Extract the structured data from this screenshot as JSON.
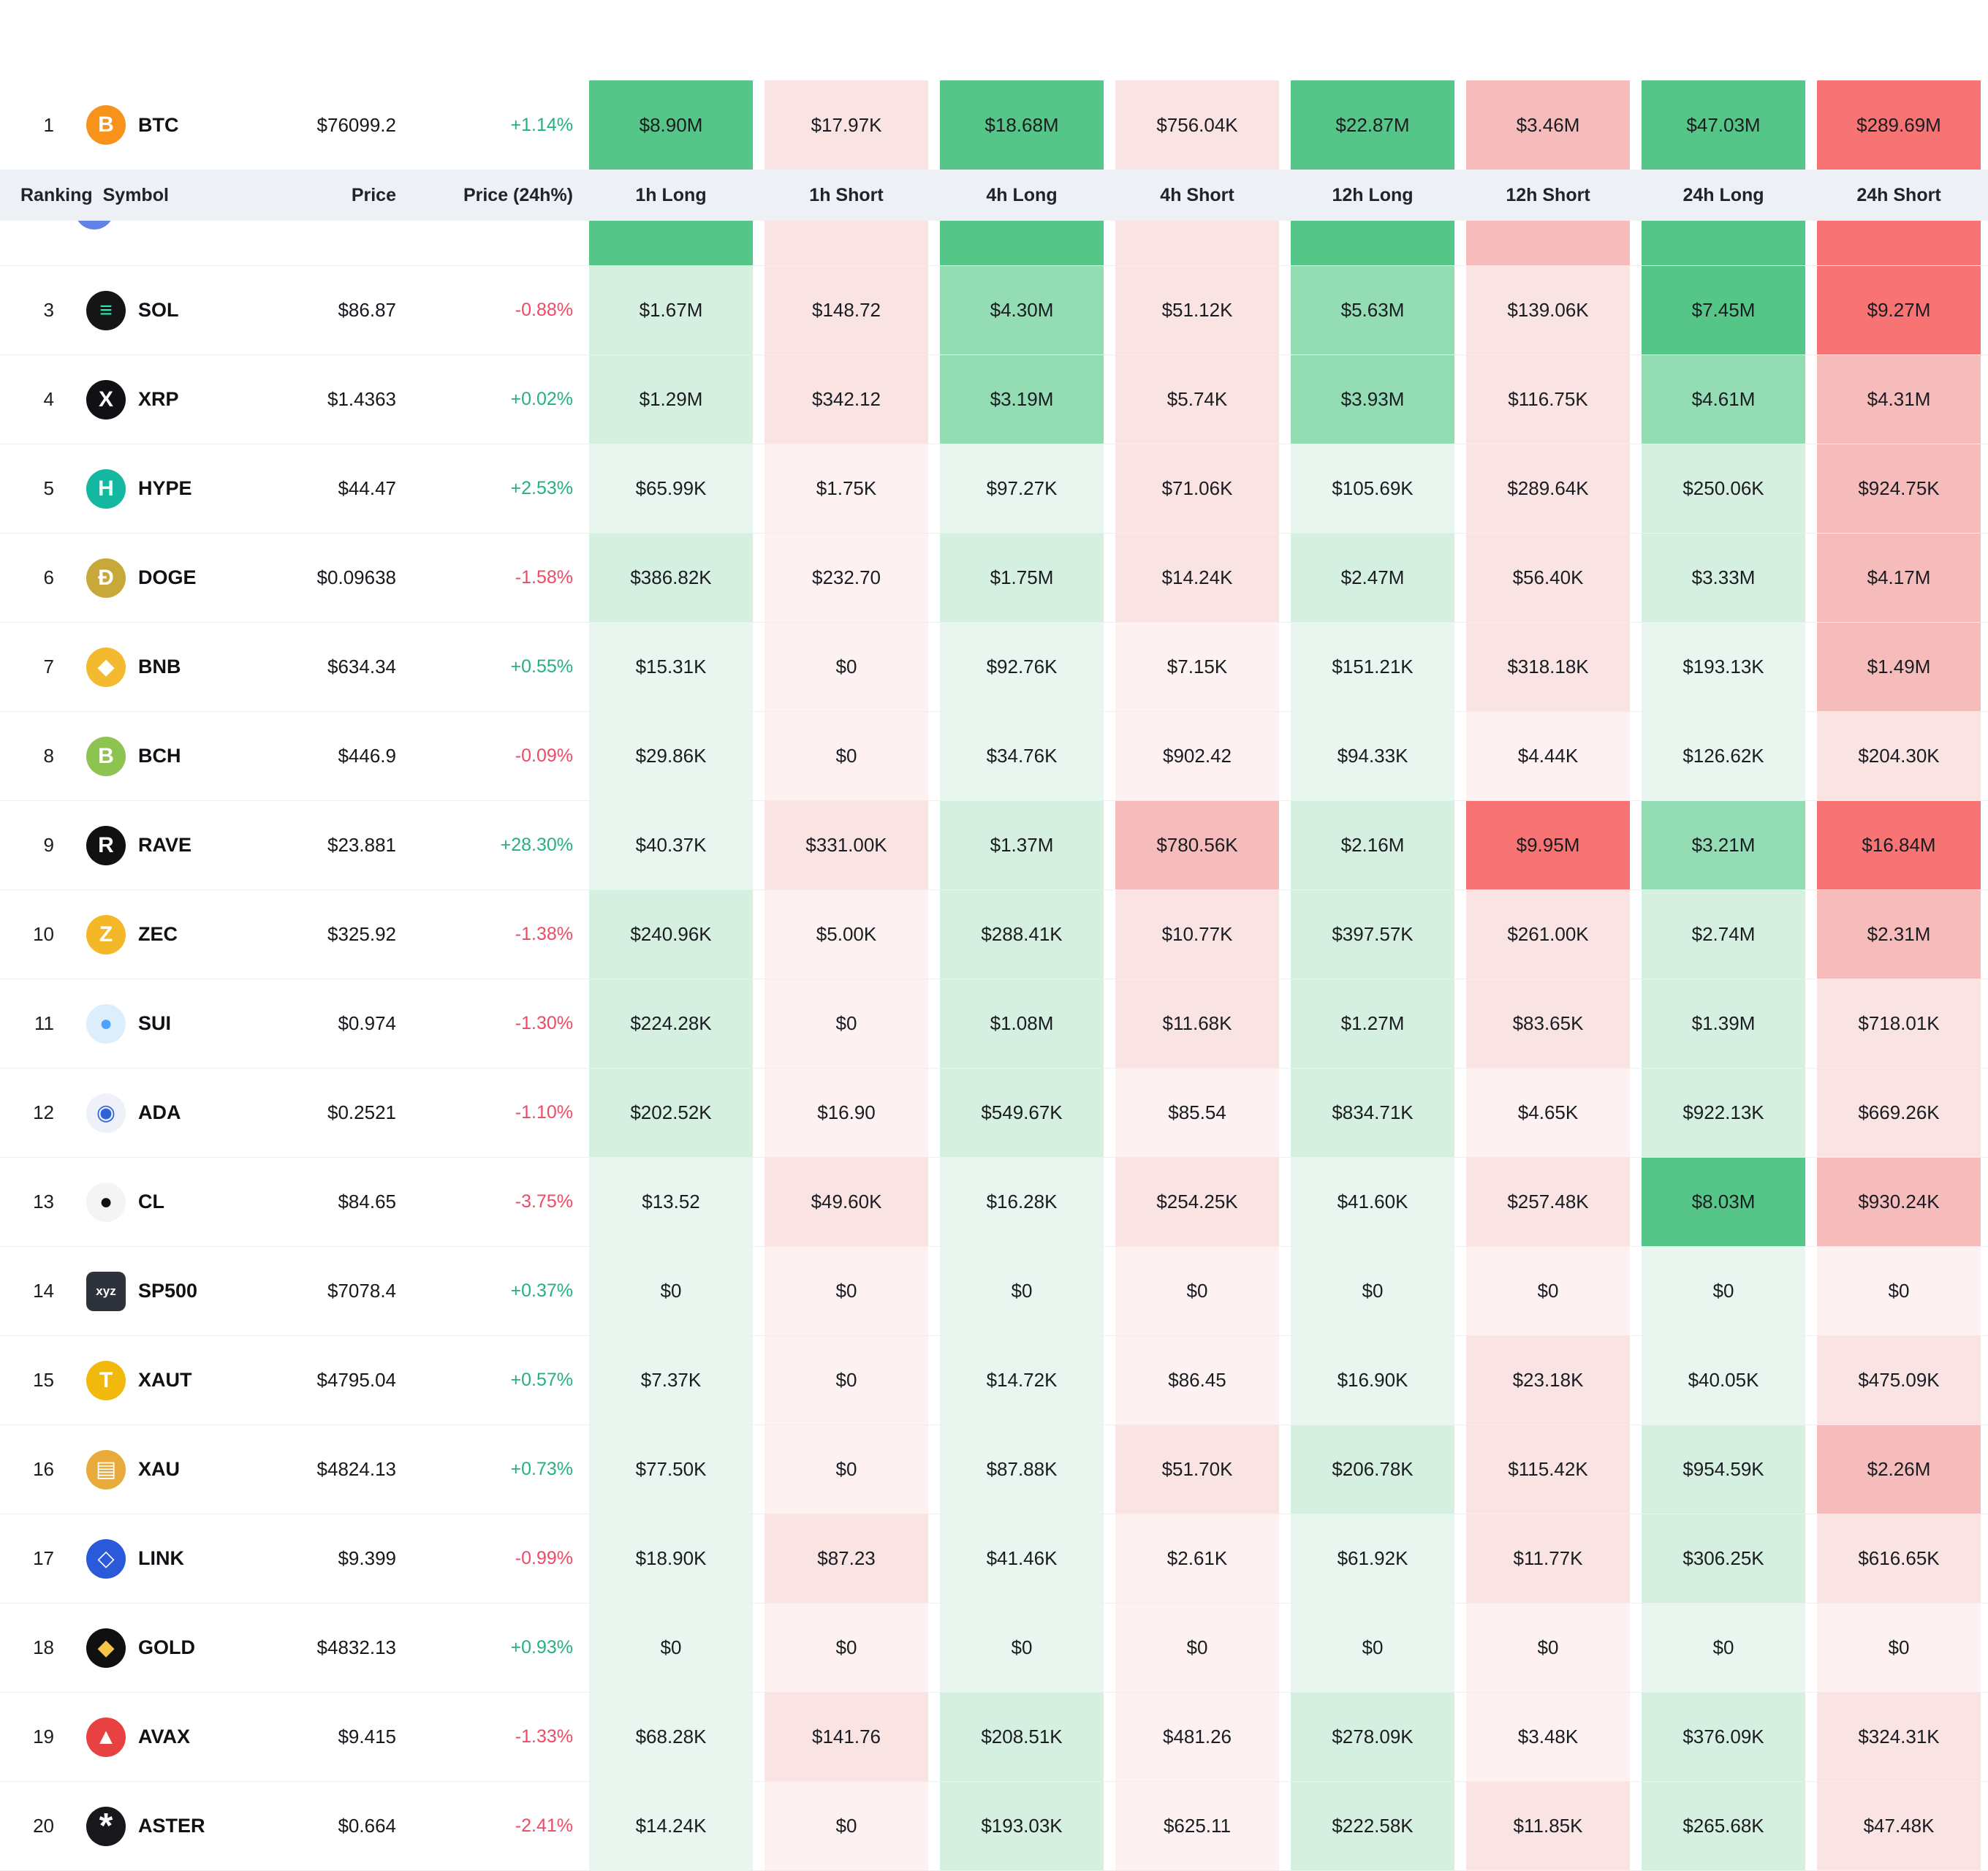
{
  "table": {
    "columns": [
      "Ranking",
      "Symbol",
      "Price",
      "Price (24h%)",
      "1h Long",
      "1h Short",
      "4h Long",
      "4h Short",
      "12h Long",
      "12h Short",
      "24h Long",
      "24h Short"
    ],
    "rows": [
      {
        "rank": "1",
        "symbol": "BTC",
        "icon": {
          "glyph": "B",
          "bg": "#f7931a",
          "fg": "#ffffff"
        },
        "price": "$76099.2",
        "change": "+1.14%",
        "dir": "up",
        "cells": [
          {
            "v": "$8.90M",
            "c": "g3"
          },
          {
            "v": "$17.97K",
            "c": "r1"
          },
          {
            "v": "$18.68M",
            "c": "g3"
          },
          {
            "v": "$756.04K",
            "c": "r1"
          },
          {
            "v": "$22.87M",
            "c": "g3"
          },
          {
            "v": "$3.46M",
            "c": "r2"
          },
          {
            "v": "$47.03M",
            "c": "g3"
          },
          {
            "v": "$289.69M",
            "c": "r3"
          }
        ]
      },
      {
        "rank": "3",
        "symbol": "SOL",
        "icon": {
          "glyph": "≡",
          "bg": "#151515",
          "fg": "#23edb2"
        },
        "price": "$86.87",
        "change": "-0.88%",
        "dir": "down",
        "cells": [
          {
            "v": "$1.67M",
            "c": "g1"
          },
          {
            "v": "$148.72",
            "c": "r1"
          },
          {
            "v": "$4.30M",
            "c": "g2"
          },
          {
            "v": "$51.12K",
            "c": "r1"
          },
          {
            "v": "$5.63M",
            "c": "g2"
          },
          {
            "v": "$139.06K",
            "c": "r1"
          },
          {
            "v": "$7.45M",
            "c": "g3"
          },
          {
            "v": "$9.27M",
            "c": "r3"
          }
        ]
      },
      {
        "rank": "4",
        "symbol": "XRP",
        "icon": {
          "glyph": "X",
          "bg": "#101114",
          "fg": "#ffffff"
        },
        "price": "$1.4363",
        "change": "+0.02%",
        "dir": "up",
        "cells": [
          {
            "v": "$1.29M",
            "c": "g1"
          },
          {
            "v": "$342.12",
            "c": "r1"
          },
          {
            "v": "$3.19M",
            "c": "g2"
          },
          {
            "v": "$5.74K",
            "c": "r1"
          },
          {
            "v": "$3.93M",
            "c": "g2"
          },
          {
            "v": "$116.75K",
            "c": "r1"
          },
          {
            "v": "$4.61M",
            "c": "g2"
          },
          {
            "v": "$4.31M",
            "c": "r2"
          }
        ]
      },
      {
        "rank": "5",
        "symbol": "HYPE",
        "icon": {
          "glyph": "H",
          "bg": "#14b8a0",
          "fg": "#eafff9"
        },
        "price": "$44.47",
        "change": "+2.53%",
        "dir": "up",
        "cells": [
          {
            "v": "$65.99K",
            "c": "g0"
          },
          {
            "v": "$1.75K",
            "c": "r0"
          },
          {
            "v": "$97.27K",
            "c": "g0"
          },
          {
            "v": "$71.06K",
            "c": "r1"
          },
          {
            "v": "$105.69K",
            "c": "g0"
          },
          {
            "v": "$289.64K",
            "c": "r1"
          },
          {
            "v": "$250.06K",
            "c": "g1"
          },
          {
            "v": "$924.75K",
            "c": "r2"
          }
        ]
      },
      {
        "rank": "6",
        "symbol": "DOGE",
        "icon": {
          "glyph": "Ð",
          "bg": "#c8a838",
          "fg": "#ffffff"
        },
        "price": "$0.09638",
        "change": "-1.58%",
        "dir": "down",
        "cells": [
          {
            "v": "$386.82K",
            "c": "g1"
          },
          {
            "v": "$232.70",
            "c": "r0"
          },
          {
            "v": "$1.75M",
            "c": "g1"
          },
          {
            "v": "$14.24K",
            "c": "r1"
          },
          {
            "v": "$2.47M",
            "c": "g1"
          },
          {
            "v": "$56.40K",
            "c": "r1"
          },
          {
            "v": "$3.33M",
            "c": "g1"
          },
          {
            "v": "$4.17M",
            "c": "r2"
          }
        ]
      },
      {
        "rank": "7",
        "symbol": "BNB",
        "icon": {
          "glyph": "◆",
          "bg": "#f3ba2f",
          "fg": "#ffffff"
        },
        "price": "$634.34",
        "change": "+0.55%",
        "dir": "up",
        "cells": [
          {
            "v": "$15.31K",
            "c": "g0"
          },
          {
            "v": "$0",
            "c": "r0"
          },
          {
            "v": "$92.76K",
            "c": "g0"
          },
          {
            "v": "$7.15K",
            "c": "r0"
          },
          {
            "v": "$151.21K",
            "c": "g0"
          },
          {
            "v": "$318.18K",
            "c": "r1"
          },
          {
            "v": "$193.13K",
            "c": "g0"
          },
          {
            "v": "$1.49M",
            "c": "r2"
          }
        ]
      },
      {
        "rank": "8",
        "symbol": "BCH",
        "icon": {
          "glyph": "B",
          "bg": "#8dc351",
          "fg": "#ffffff"
        },
        "price": "$446.9",
        "change": "-0.09%",
        "dir": "down",
        "cells": [
          {
            "v": "$29.86K",
            "c": "g0"
          },
          {
            "v": "$0",
            "c": "r0"
          },
          {
            "v": "$34.76K",
            "c": "g0"
          },
          {
            "v": "$902.42",
            "c": "r0"
          },
          {
            "v": "$94.33K",
            "c": "g0"
          },
          {
            "v": "$4.44K",
            "c": "r0"
          },
          {
            "v": "$126.62K",
            "c": "g0"
          },
          {
            "v": "$204.30K",
            "c": "r1"
          }
        ]
      },
      {
        "rank": "9",
        "symbol": "RAVE",
        "icon": {
          "glyph": "R",
          "bg": "#111111",
          "fg": "#ffffff"
        },
        "price": "$23.881",
        "change": "+28.30%",
        "dir": "up",
        "cells": [
          {
            "v": "$40.37K",
            "c": "g0"
          },
          {
            "v": "$331.00K",
            "c": "r1"
          },
          {
            "v": "$1.37M",
            "c": "g1"
          },
          {
            "v": "$780.56K",
            "c": "r2"
          },
          {
            "v": "$2.16M",
            "c": "g1"
          },
          {
            "v": "$9.95M",
            "c": "r3"
          },
          {
            "v": "$3.21M",
            "c": "g2"
          },
          {
            "v": "$16.84M",
            "c": "r3"
          }
        ]
      },
      {
        "rank": "10",
        "symbol": "ZEC",
        "icon": {
          "glyph": "Z",
          "bg": "#f4b728",
          "fg": "#ffffff"
        },
        "price": "$325.92",
        "change": "-1.38%",
        "dir": "down",
        "cells": [
          {
            "v": "$240.96K",
            "c": "g1"
          },
          {
            "v": "$5.00K",
            "c": "r0"
          },
          {
            "v": "$288.41K",
            "c": "g1"
          },
          {
            "v": "$10.77K",
            "c": "r1"
          },
          {
            "v": "$397.57K",
            "c": "g1"
          },
          {
            "v": "$261.00K",
            "c": "r1"
          },
          {
            "v": "$2.74M",
            "c": "g1"
          },
          {
            "v": "$2.31M",
            "c": "r2"
          }
        ]
      },
      {
        "rank": "11",
        "symbol": "SUI",
        "icon": {
          "glyph": "●",
          "bg": "#dceefc",
          "fg": "#4da2ff"
        },
        "price": "$0.974",
        "change": "-1.30%",
        "dir": "down",
        "cells": [
          {
            "v": "$224.28K",
            "c": "g1"
          },
          {
            "v": "$0",
            "c": "r0"
          },
          {
            "v": "$1.08M",
            "c": "g1"
          },
          {
            "v": "$11.68K",
            "c": "r1"
          },
          {
            "v": "$1.27M",
            "c": "g1"
          },
          {
            "v": "$83.65K",
            "c": "r1"
          },
          {
            "v": "$1.39M",
            "c": "g1"
          },
          {
            "v": "$718.01K",
            "c": "r1"
          }
        ]
      },
      {
        "rank": "12",
        "symbol": "ADA",
        "icon": {
          "glyph": "◉",
          "bg": "#eef2f8",
          "fg": "#2f62d9"
        },
        "price": "$0.2521",
        "change": "-1.10%",
        "dir": "down",
        "cells": [
          {
            "v": "$202.52K",
            "c": "g1"
          },
          {
            "v": "$16.90",
            "c": "r0"
          },
          {
            "v": "$549.67K",
            "c": "g1"
          },
          {
            "v": "$85.54",
            "c": "r0"
          },
          {
            "v": "$834.71K",
            "c": "g1"
          },
          {
            "v": "$4.65K",
            "c": "r0"
          },
          {
            "v": "$922.13K",
            "c": "g1"
          },
          {
            "v": "$669.26K",
            "c": "r1"
          }
        ]
      },
      {
        "rank": "13",
        "symbol": "CL",
        "icon": {
          "glyph": "●",
          "bg": "#f4f4f4",
          "fg": "#101010"
        },
        "price": "$84.65",
        "change": "-3.75%",
        "dir": "down",
        "cells": [
          {
            "v": "$13.52",
            "c": "g0"
          },
          {
            "v": "$49.60K",
            "c": "r1"
          },
          {
            "v": "$16.28K",
            "c": "g0"
          },
          {
            "v": "$254.25K",
            "c": "r1"
          },
          {
            "v": "$41.60K",
            "c": "g0"
          },
          {
            "v": "$257.48K",
            "c": "r1"
          },
          {
            "v": "$8.03M",
            "c": "g3"
          },
          {
            "v": "$930.24K",
            "c": "r2"
          }
        ]
      },
      {
        "rank": "14",
        "symbol": "SP500",
        "icon": {
          "glyph": "xyz",
          "bg": "#2e333b",
          "fg": "#ffffff",
          "square": true,
          "small": true
        },
        "price": "$7078.4",
        "change": "+0.37%",
        "dir": "up",
        "cells": [
          {
            "v": "$0",
            "c": "g0"
          },
          {
            "v": "$0",
            "c": "r0"
          },
          {
            "v": "$0",
            "c": "g0"
          },
          {
            "v": "$0",
            "c": "r0"
          },
          {
            "v": "$0",
            "c": "g0"
          },
          {
            "v": "$0",
            "c": "r0"
          },
          {
            "v": "$0",
            "c": "g0"
          },
          {
            "v": "$0",
            "c": "r0"
          }
        ]
      },
      {
        "rank": "15",
        "symbol": "XAUT",
        "icon": {
          "glyph": "T",
          "bg": "#f0b90b",
          "fg": "#ffffff"
        },
        "price": "$4795.04",
        "change": "+0.57%",
        "dir": "up",
        "cells": [
          {
            "v": "$7.37K",
            "c": "g0"
          },
          {
            "v": "$0",
            "c": "r0"
          },
          {
            "v": "$14.72K",
            "c": "g0"
          },
          {
            "v": "$86.45",
            "c": "r0"
          },
          {
            "v": "$16.90K",
            "c": "g0"
          },
          {
            "v": "$23.18K",
            "c": "r1"
          },
          {
            "v": "$40.05K",
            "c": "g0"
          },
          {
            "v": "$475.09K",
            "c": "r1"
          }
        ]
      },
      {
        "rank": "16",
        "symbol": "XAU",
        "icon": {
          "glyph": "▤",
          "bg": "#e8aa3a",
          "fg": "#ffffff"
        },
        "price": "$4824.13",
        "change": "+0.73%",
        "dir": "up",
        "cells": [
          {
            "v": "$77.50K",
            "c": "g0"
          },
          {
            "v": "$0",
            "c": "r0"
          },
          {
            "v": "$87.88K",
            "c": "g0"
          },
          {
            "v": "$51.70K",
            "c": "r1"
          },
          {
            "v": "$206.78K",
            "c": "g1"
          },
          {
            "v": "$115.42K",
            "c": "r1"
          },
          {
            "v": "$954.59K",
            "c": "g1"
          },
          {
            "v": "$2.26M",
            "c": "r2"
          }
        ]
      },
      {
        "rank": "17",
        "symbol": "LINK",
        "icon": {
          "glyph": "◇",
          "bg": "#2a5ada",
          "fg": "#ffffff"
        },
        "price": "$9.399",
        "change": "-0.99%",
        "dir": "down",
        "cells": [
          {
            "v": "$18.90K",
            "c": "g0"
          },
          {
            "v": "$87.23",
            "c": "r1"
          },
          {
            "v": "$41.46K",
            "c": "g0"
          },
          {
            "v": "$2.61K",
            "c": "r0"
          },
          {
            "v": "$61.92K",
            "c": "g0"
          },
          {
            "v": "$11.77K",
            "c": "r1"
          },
          {
            "v": "$306.25K",
            "c": "g1"
          },
          {
            "v": "$616.65K",
            "c": "r1"
          }
        ]
      },
      {
        "rank": "18",
        "symbol": "GOLD",
        "icon": {
          "glyph": "◆",
          "bg": "#101010",
          "fg": "#f6c64a"
        },
        "price": "$4832.13",
        "change": "+0.93%",
        "dir": "up",
        "cells": [
          {
            "v": "$0",
            "c": "g0"
          },
          {
            "v": "$0",
            "c": "r0"
          },
          {
            "v": "$0",
            "c": "g0"
          },
          {
            "v": "$0",
            "c": "r0"
          },
          {
            "v": "$0",
            "c": "g0"
          },
          {
            "v": "$0",
            "c": "r0"
          },
          {
            "v": "$0",
            "c": "g0"
          },
          {
            "v": "$0",
            "c": "r0"
          }
        ]
      },
      {
        "rank": "19",
        "symbol": "AVAX",
        "icon": {
          "glyph": "▲",
          "bg": "#e84142",
          "fg": "#ffffff"
        },
        "price": "$9.415",
        "change": "-1.33%",
        "dir": "down",
        "cells": [
          {
            "v": "$68.28K",
            "c": "g0"
          },
          {
            "v": "$141.76",
            "c": "r1"
          },
          {
            "v": "$208.51K",
            "c": "g1"
          },
          {
            "v": "$481.26",
            "c": "r0"
          },
          {
            "v": "$278.09K",
            "c": "g1"
          },
          {
            "v": "$3.48K",
            "c": "r0"
          },
          {
            "v": "$376.09K",
            "c": "g1"
          },
          {
            "v": "$324.31K",
            "c": "r1"
          }
        ]
      },
      {
        "rank": "20",
        "symbol": "ASTER",
        "icon": {
          "glyph": "*",
          "bg": "#17181b",
          "fg": "#ffffff"
        },
        "price": "$0.664",
        "change": "-2.41%",
        "dir": "down",
        "cells": [
          {
            "v": "$14.24K",
            "c": "g0"
          },
          {
            "v": "$0",
            "c": "r0"
          },
          {
            "v": "$193.03K",
            "c": "g1"
          },
          {
            "v": "$625.11",
            "c": "r0"
          },
          {
            "v": "$222.58K",
            "c": "g1"
          },
          {
            "v": "$11.85K",
            "c": "r1"
          },
          {
            "v": "$265.68K",
            "c": "g1"
          },
          {
            "v": "$47.48K",
            "c": "r1"
          }
        ]
      }
    ],
    "partial_row": {
      "icon_bg": "#6481e7",
      "cells": [
        "g3",
        "r1",
        "g3",
        "r1",
        "g3",
        "r2",
        "g3",
        "r3"
      ]
    }
  },
  "colors": {
    "positive": "#23b27d",
    "negative": "#ef4a63",
    "header_bg": "#edf0f4"
  }
}
